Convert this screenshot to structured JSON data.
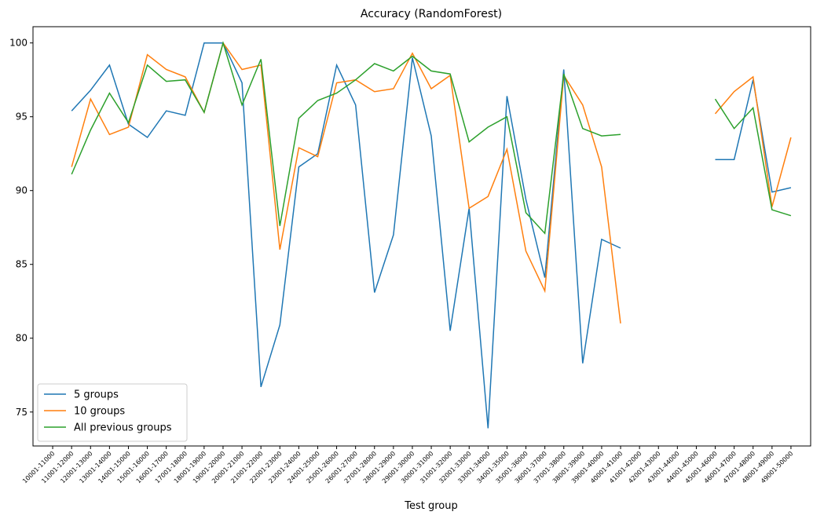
{
  "chart_data": {
    "type": "line",
    "title": "Accuracy (RandomForest)",
    "x_label": "Test group",
    "categories": [
      "10001-11000",
      "11001-12000",
      "12001-13000",
      "13001-14000",
      "14001-15000",
      "15001-16000",
      "16001-17000",
      "17001-18000",
      "18001-19000",
      "19001-20000",
      "20001-21000",
      "21001-22000",
      "22001-23000",
      "23001-24000",
      "24001-25000",
      "25001-26000",
      "26001-27000",
      "27001-28000",
      "28001-29000",
      "29001-30000",
      "30001-31000",
      "31001-32000",
      "32001-33000",
      "33001-34000",
      "34001-35000",
      "35001-36000",
      "36001-37000",
      "37001-38000",
      "38001-39000",
      "39001-40000",
      "40001-41000",
      "41001-42000",
      "42001-43000",
      "43001-44000",
      "44001-45000",
      "45001-46000",
      "46001-47000",
      "47001-48000",
      "48001-49000",
      "49001-50000"
    ],
    "series": [
      {
        "name": "5 groups",
        "color": "#1f77b4",
        "values": [
          null,
          95.4,
          96.8,
          98.5,
          94.5,
          93.6,
          95.4,
          95.1,
          100,
          100,
          97.3,
          76.7,
          80.9,
          91.6,
          92.5,
          98.5,
          95.8,
          83.1,
          87.0,
          99.0,
          93.7,
          80.5,
          88.8,
          73.9,
          96.4,
          89.4,
          84.1,
          98.2,
          78.3,
          86.7,
          86.1,
          null,
          null,
          null,
          null,
          92.1,
          92.1,
          97.5,
          89.9,
          90.2
        ]
      },
      {
        "name": "10 groups",
        "color": "#ff7f0e",
        "values": [
          null,
          91.6,
          96.2,
          93.8,
          94.3,
          99.2,
          98.2,
          97.7,
          95.3,
          100,
          98.2,
          98.5,
          86.0,
          92.9,
          92.3,
          97.3,
          97.5,
          96.7,
          96.9,
          99.3,
          96.9,
          97.8,
          88.8,
          89.6,
          92.8,
          85.9,
          83.2,
          97.8,
          95.8,
          91.6,
          81.0,
          null,
          null,
          null,
          null,
          95.2,
          96.7,
          97.7,
          88.9,
          93.6
        ]
      },
      {
        "name": "All previous groups",
        "color": "#2ca02c",
        "values": [
          null,
          91.1,
          94.1,
          96.6,
          94.6,
          98.5,
          97.4,
          97.5,
          95.3,
          100,
          95.8,
          98.9,
          87.6,
          94.9,
          96.1,
          96.6,
          97.5,
          98.6,
          98.1,
          99.1,
          98.1,
          97.9,
          93.3,
          94.3,
          95.0,
          88.5,
          87.1,
          97.9,
          94.2,
          93.7,
          93.8,
          null,
          null,
          null,
          null,
          96.2,
          94.2,
          95.6,
          88.7,
          88.3
        ]
      }
    ],
    "ylim": [
      72.7,
      101.1
    ],
    "yticks": [
      75,
      80,
      85,
      90,
      95,
      100
    ],
    "grid": false,
    "legend": "lower left"
  }
}
